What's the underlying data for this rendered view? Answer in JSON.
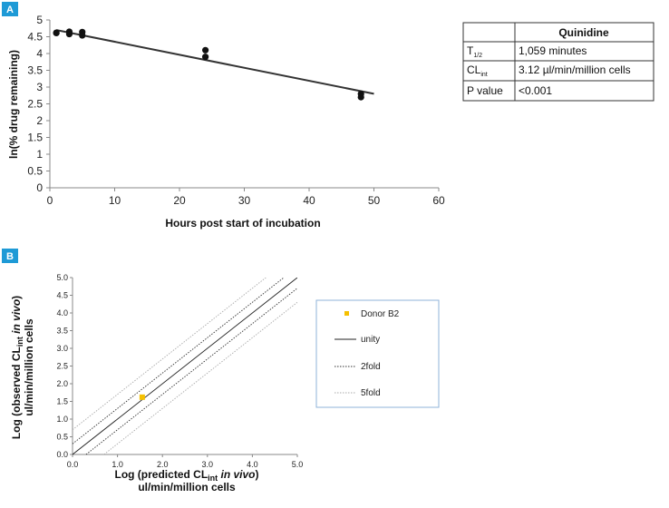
{
  "panel_a_label": "A",
  "panel_b_label": "B",
  "chart_data": [
    {
      "type": "scatter",
      "title": "",
      "xlabel": "Hours post start of incubation",
      "ylabel": "ln(% drug remaining)",
      "xlim": [
        0,
        60
      ],
      "ylim": [
        0,
        5
      ],
      "xticks": [
        "0",
        "10",
        "20",
        "30",
        "40",
        "50",
        "60"
      ],
      "yticks": [
        "0",
        "0.5",
        "1",
        "1.5",
        "2",
        "2.5",
        "3",
        "3.5",
        "4",
        "4.5",
        "5"
      ],
      "grid": false,
      "points": [
        {
          "x": 1,
          "y": 4.61
        },
        {
          "x": 1,
          "y": 4.62
        },
        {
          "x": 3,
          "y": 4.65
        },
        {
          "x": 3,
          "y": 4.58
        },
        {
          "x": 5,
          "y": 4.64
        },
        {
          "x": 5,
          "y": 4.54
        },
        {
          "x": 24,
          "y": 4.1
        },
        {
          "x": 24,
          "y": 3.9
        },
        {
          "x": 48,
          "y": 2.8
        },
        {
          "x": 48,
          "y": 2.7
        }
      ],
      "fit_line": {
        "x": [
          1,
          50
        ],
        "y": [
          4.7,
          2.8
        ]
      }
    },
    {
      "type": "scatter",
      "title": "",
      "xlabel_main": "Log (predicted CL",
      "xlabel_sub": "int",
      "xlabel_italic": " in vivo",
      "xlabel_end": ")",
      "xlabel_units": "ul/min/million cells",
      "ylabel_main": "Log (observed CL",
      "ylabel_sub": "int",
      "ylabel_italic": " in vivo",
      "ylabel_end": ")",
      "ylabel_units": "ul/min/million cells",
      "xlim": [
        0,
        5
      ],
      "ylim": [
        0,
        5
      ],
      "xticks": [
        "0.0",
        "1.0",
        "2.0",
        "3.0",
        "4.0",
        "5.0"
      ],
      "yticks": [
        "0.0",
        "0.5",
        "1.0",
        "1.5",
        "2.0",
        "2.5",
        "3.0",
        "3.5",
        "4.0",
        "4.5",
        "5.0"
      ],
      "grid": false,
      "legend_position": "right",
      "series": [
        {
          "name": "Donor B2",
          "points": [
            {
              "x": 1.55,
              "y": 1.62
            }
          ],
          "color": "#f5c000"
        },
        {
          "name": "unity",
          "line": {
            "x": [
              0,
              5
            ],
            "y": [
              0,
              5
            ]
          },
          "color": "#222222"
        },
        {
          "name": "2fold",
          "lines": [
            {
              "x": [
                0,
                4.699
              ],
              "y": [
                0.301,
                5
              ]
            },
            {
              "x": [
                0.301,
                5
              ],
              "y": [
                0,
                4.699
              ]
            }
          ],
          "color": "#333333"
        },
        {
          "name": "5fold",
          "lines": [
            {
              "x": [
                0,
                4.301
              ],
              "y": [
                0.699,
                5
              ]
            },
            {
              "x": [
                0.699,
                5
              ],
              "y": [
                0,
                4.301
              ]
            }
          ],
          "color": "#aaaaaa"
        }
      ]
    }
  ],
  "table": {
    "header": [
      "",
      "Quinidine"
    ],
    "rows": [
      {
        "label_main": "T",
        "label_sub": "1/2",
        "value": "1,059 minutes"
      },
      {
        "label_main": "CL",
        "label_sub": "int",
        "value": "3.12 µl/min/million cells"
      },
      {
        "label_main": "P value",
        "label_sub": "",
        "value": "<0.001"
      }
    ]
  }
}
